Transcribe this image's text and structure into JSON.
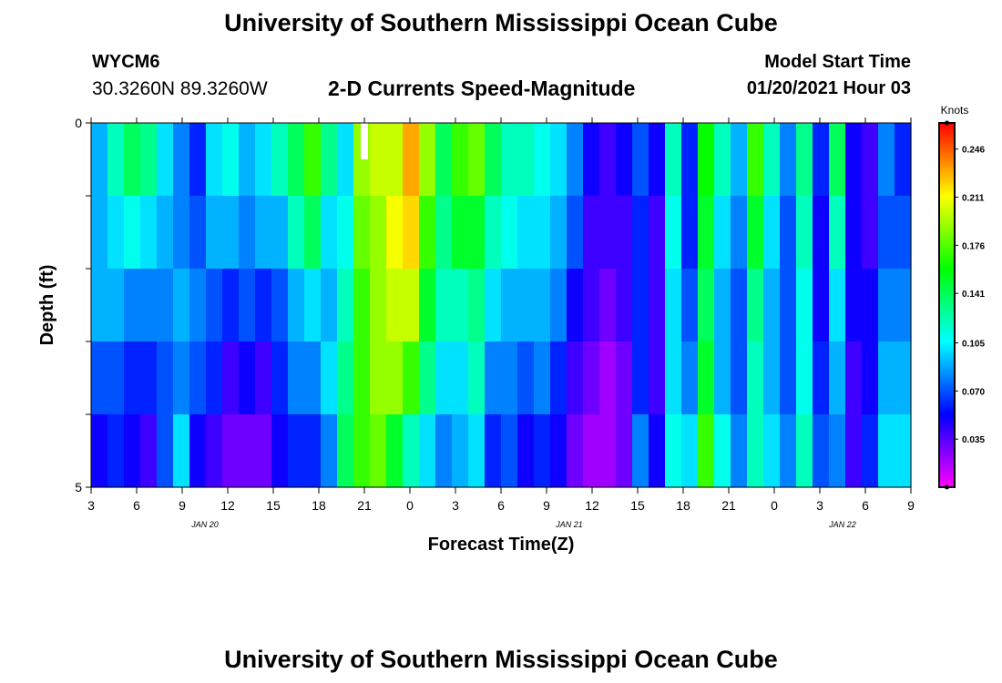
{
  "header": {
    "title": "University of Southern Mississippi Ocean Cube",
    "station_id": "WYCM6",
    "station_coords": "30.3260N 89.3260W",
    "subtitle": "2-D Currents Speed-Magnitude",
    "model_start_label": "Model Start Time",
    "model_start_value": "01/20/2021 Hour 03"
  },
  "footer": {
    "title": "University of Southern Mississippi Ocean Cube"
  },
  "chart_data": {
    "type": "heatmap",
    "title": "2-D Currents Speed-Magnitude",
    "xlabel": "Forecast Time(Z)",
    "ylabel": "Depth (ft)",
    "ylim": [
      0,
      5
    ],
    "y_tick_labels": [
      "0",
      "5"
    ],
    "x_tick_labels": [
      "3",
      "6",
      "9",
      "12",
      "15",
      "18",
      "21",
      "0",
      "3",
      "6",
      "9",
      "12",
      "15",
      "18",
      "21",
      "0",
      "3",
      "6",
      "9"
    ],
    "date_labels": [
      {
        "text": "JAN 20",
        "after_tick": 2
      },
      {
        "text": "JAN 21",
        "after_tick": 10
      },
      {
        "text": "JAN 22",
        "after_tick": 16
      }
    ],
    "colorbar": {
      "label": "Knots",
      "tick_labels": [
        "0.246",
        "0.211",
        "0.176",
        "0.141",
        "0.105",
        "0.070",
        "0.035"
      ],
      "tick_values": [
        0.246,
        0.211,
        0.176,
        0.141,
        0.105,
        0.07,
        0.035
      ],
      "range": [
        0.0,
        0.265
      ]
    },
    "depth_layers": 5,
    "hours_per_column": 1,
    "profile": [
      [
        0.09,
        0.09,
        0.09,
        0.07,
        0.05
      ],
      [
        0.12,
        0.1,
        0.09,
        0.07,
        0.06
      ],
      [
        0.14,
        0.11,
        0.08,
        0.06,
        0.05
      ],
      [
        0.13,
        0.1,
        0.08,
        0.06,
        0.04
      ],
      [
        0.1,
        0.09,
        0.08,
        0.07,
        0.07
      ],
      [
        0.08,
        0.08,
        0.09,
        0.08,
        0.1
      ],
      [
        0.06,
        0.07,
        0.08,
        0.07,
        0.05
      ],
      [
        0.1,
        0.09,
        0.07,
        0.06,
        0.04
      ],
      [
        0.11,
        0.09,
        0.06,
        0.04,
        0.03
      ],
      [
        0.09,
        0.08,
        0.07,
        0.05,
        0.03
      ],
      [
        0.1,
        0.09,
        0.06,
        0.04,
        0.03
      ],
      [
        0.12,
        0.09,
        0.07,
        0.06,
        0.05
      ],
      [
        0.14,
        0.12,
        0.09,
        0.08,
        0.06
      ],
      [
        0.17,
        0.14,
        0.1,
        0.08,
        0.06
      ],
      [
        0.13,
        0.1,
        0.09,
        0.1,
        0.08
      ],
      [
        0.1,
        0.11,
        0.12,
        0.13,
        0.14
      ],
      [
        0.19,
        0.18,
        0.17,
        0.17,
        0.17
      ],
      [
        0.2,
        0.19,
        0.19,
        0.19,
        0.18
      ],
      [
        0.2,
        0.21,
        0.2,
        0.19,
        0.15
      ],
      [
        0.23,
        0.22,
        0.2,
        0.17,
        0.12
      ],
      [
        0.19,
        0.17,
        0.15,
        0.13,
        0.1
      ],
      [
        0.14,
        0.13,
        0.12,
        0.1,
        0.08
      ],
      [
        0.17,
        0.15,
        0.12,
        0.1,
        0.09
      ],
      [
        0.18,
        0.15,
        0.13,
        0.12,
        0.1
      ],
      [
        0.14,
        0.12,
        0.1,
        0.08,
        0.06
      ],
      [
        0.12,
        0.11,
        0.09,
        0.08,
        0.07
      ],
      [
        0.12,
        0.1,
        0.09,
        0.07,
        0.05
      ],
      [
        0.11,
        0.1,
        0.09,
        0.08,
        0.06
      ],
      [
        0.1,
        0.09,
        0.08,
        0.06,
        0.05
      ],
      [
        0.08,
        0.07,
        0.05,
        0.04,
        0.03
      ],
      [
        0.05,
        0.04,
        0.04,
        0.03,
        0.02
      ],
      [
        0.04,
        0.04,
        0.03,
        0.02,
        0.02
      ],
      [
        0.05,
        0.04,
        0.04,
        0.03,
        0.03
      ],
      [
        0.07,
        0.06,
        0.06,
        0.06,
        0.08
      ],
      [
        0.05,
        0.04,
        0.04,
        0.04,
        0.05
      ],
      [
        0.12,
        0.11,
        0.1,
        0.1,
        0.11
      ],
      [
        0.06,
        0.06,
        0.07,
        0.08,
        0.1
      ],
      [
        0.16,
        0.15,
        0.14,
        0.15,
        0.17
      ],
      [
        0.12,
        0.1,
        0.09,
        0.09,
        0.11
      ],
      [
        0.09,
        0.08,
        0.07,
        0.07,
        0.08
      ],
      [
        0.17,
        0.15,
        0.13,
        0.12,
        0.12
      ],
      [
        0.12,
        0.1,
        0.09,
        0.09,
        0.1
      ],
      [
        0.08,
        0.07,
        0.07,
        0.07,
        0.08
      ],
      [
        0.13,
        0.12,
        0.11,
        0.11,
        0.12
      ],
      [
        0.06,
        0.05,
        0.05,
        0.06,
        0.07
      ],
      [
        0.14,
        0.12,
        0.1,
        0.09,
        0.08
      ],
      [
        0.05,
        0.05,
        0.05,
        0.04,
        0.04
      ],
      [
        0.04,
        0.04,
        0.05,
        0.05,
        0.06
      ],
      [
        0.08,
        0.07,
        0.08,
        0.09,
        0.1
      ],
      [
        0.06,
        0.07,
        0.08,
        0.09,
        0.1
      ]
    ]
  },
  "colors": {
    "background": "#ffffff",
    "frame": "#000000",
    "missing_cell": "#ffffff"
  }
}
